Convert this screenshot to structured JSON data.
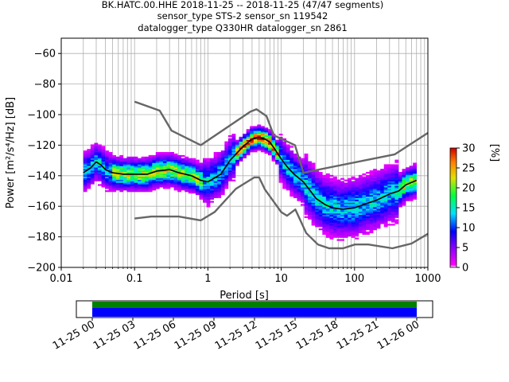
{
  "title_lines": [
    "BK.HATC.00.HHE   2018-11-25 -- 2018-11-25  (47/47 segments)",
    "sensor_type STS-2 sensor_sn 119542",
    "datalogger_type Q330HR datalogger_sn 2861"
  ],
  "colorbar": {
    "label": "[%]",
    "ticks": [
      "0",
      "5",
      "10",
      "15",
      "20",
      "25",
      "30"
    ],
    "range": [
      0,
      30
    ]
  },
  "timeline": {
    "ticks": [
      "11-25 00",
      "11-25 03",
      "11-25 06",
      "11-25 09",
      "11-25 12",
      "11-25 15",
      "11-25 18",
      "11-25 21",
      "11-26 00"
    ],
    "colors": {
      "coverage": "#0000ff",
      "stacked": "#008000"
    }
  },
  "chart_data": {
    "type": "heatmap",
    "xlabel": "Period [s]",
    "ylabel": "Power [m²/s⁴/Hz] [dB]",
    "xscale": "log",
    "xlim": [
      0.01,
      1000
    ],
    "ylim": [
      -200,
      -50
    ],
    "xtick_labels": [
      "0.01",
      "0.1",
      "1",
      "10",
      "100",
      "1000"
    ],
    "ytick_labels": [
      "−200",
      "−180",
      "−160",
      "−140",
      "−120",
      "−100",
      "−80",
      "−60"
    ],
    "mode_curve": {
      "period": [
        0.02,
        0.025,
        0.03,
        0.035,
        0.04,
        0.05,
        0.07,
        0.1,
        0.15,
        0.2,
        0.3,
        0.4,
        0.6,
        0.8,
        1.0,
        1.5,
        2,
        3,
        4,
        5,
        6,
        7,
        8,
        10,
        12,
        15,
        20,
        25,
        30,
        40,
        50,
        70,
        100,
        150,
        200,
        300,
        400,
        500,
        700
      ],
      "power": [
        -138,
        -135,
        -131,
        -133,
        -136,
        -138,
        -139,
        -139,
        -139,
        -137,
        -136,
        -138,
        -140,
        -143,
        -144,
        -139,
        -130,
        -121,
        -116,
        -115,
        -116,
        -118,
        -122,
        -129,
        -134,
        -139,
        -144,
        -150,
        -155,
        -159,
        -161,
        -162,
        -161,
        -158,
        -156,
        -152,
        -150,
        -146,
        -143
      ]
    },
    "nhnm": {
      "period": [
        0.1,
        0.22,
        0.32,
        0.8,
        3.8,
        4.6,
        6.3,
        7.9,
        15.4,
        20,
        354.8,
        1000
      ],
      "power": [
        -91.5,
        -97.4,
        -110.5,
        -120,
        -98,
        -96.5,
        -101,
        -113.5,
        -120,
        -138,
        -126,
        -112
      ]
    },
    "nlnm": {
      "period": [
        0.1,
        0.17,
        0.4,
        0.8,
        1.24,
        2.4,
        4.3,
        5.0,
        6.0,
        10.0,
        12.0,
        15.6,
        21.9,
        31.6,
        45,
        70,
        101,
        154,
        328,
        600,
        1000
      ],
      "power": [
        -168,
        -166.7,
        -166.7,
        -169.2,
        -163.7,
        -148.6,
        -141.1,
        -141.1,
        -149,
        -163.8,
        -166.2,
        -162.1,
        -177.5,
        -185,
        -187.5,
        -187.5,
        -185,
        -185,
        -187.5,
        -184.4,
        -178
      ]
    },
    "grid": true
  }
}
